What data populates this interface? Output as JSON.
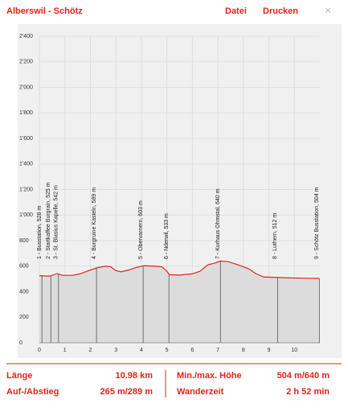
{
  "header": {
    "title": "Alberswil - Schötz",
    "menu": [
      "Datei",
      "Drucken"
    ],
    "close": "×"
  },
  "chart_data": {
    "type": "line",
    "x": [
      0,
      0.4,
      0.7,
      0.9,
      1.3,
      1.6,
      2.0,
      2.3,
      2.6,
      2.8,
      3.0,
      3.2,
      3.5,
      3.8,
      4.1,
      4.5,
      4.8,
      5.0,
      5.1,
      5.5,
      6.0,
      6.3,
      6.6,
      6.9,
      7.1,
      7.4,
      7.8,
      8.2,
      8.5,
      8.8,
      9.3,
      9.8,
      10.5,
      10.98
    ],
    "series": [
      {
        "color": "#e2231a",
        "fill": "#dcdcdc",
        "values": [
          525,
          522,
          542,
          528,
          528,
          540,
          570,
          589,
          600,
          595,
          565,
          555,
          570,
          590,
          603,
          600,
          595,
          560,
          533,
          530,
          540,
          560,
          610,
          625,
          640,
          635,
          610,
          580,
          540,
          515,
          512,
          508,
          505,
          504
        ]
      }
    ],
    "xlim": [
      0,
      11
    ],
    "xticks": [
      0,
      1,
      2,
      3,
      4,
      5,
      6,
      7,
      8,
      9,
      10
    ],
    "ylim": [
      0,
      2400
    ],
    "yticks": [
      0,
      200,
      400,
      600,
      800,
      {
        "value": 1000,
        "label": "1'000"
      },
      {
        "value": 1200,
        "label": "1'200"
      },
      {
        "value": 1400,
        "label": "1'400"
      },
      {
        "value": 1600,
        "label": "1'600"
      },
      {
        "value": 1800,
        "label": "1'800"
      },
      {
        "value": 2000,
        "label": "2'000"
      },
      {
        "value": 2200,
        "label": "2'200"
      },
      {
        "value": 2400,
        "label": "2'400"
      }
    ],
    "grid": true,
    "stations": [
      {
        "label": "1 - Busstation, 528 m",
        "x": 0.1,
        "elevation": 528
      },
      {
        "label": "2 - Startkaffee Burgrain, 525 m",
        "x": 0.45,
        "elevation": 525
      },
      {
        "label": "3 - St. Blasius Kapelle, 542 m",
        "x": 0.75,
        "elevation": 542
      },
      {
        "label": "4 - Burgruine Kasteln, 589 m",
        "x": 2.24,
        "elevation": 589
      },
      {
        "label": "5 - Obervarnern, 603 m",
        "x": 4.07,
        "elevation": 603
      },
      {
        "label": "6 - Nderwil, 533 m",
        "x": 5.08,
        "elevation": 533
      },
      {
        "label": "7 - Kurhaus Ohmstal, 640 m",
        "x": 7.1,
        "elevation": 640
      },
      {
        "label": "8 - Luthern, 512 m",
        "x": 9.34,
        "elevation": 512
      },
      {
        "label": "9 - Schötz Busstation, 504 m",
        "x": 10.98,
        "elevation": 504
      }
    ]
  },
  "stats": {
    "rows": [
      [
        "Länge",
        "10.98 km",
        "Min./max. Höhe",
        "504 m/640 m"
      ],
      [
        "Auf-/Abstieg",
        "265 m/289 m",
        "Wanderzeit",
        "2 h 52 min"
      ]
    ]
  }
}
